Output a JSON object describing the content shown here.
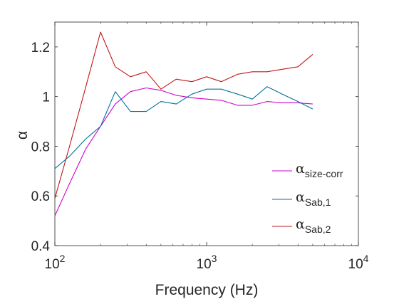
{
  "chart_data": {
    "type": "line",
    "xscale": "log",
    "xlim": [
      100,
      10000
    ],
    "ylim": [
      0.4,
      1.3
    ],
    "xlabel": "Frequency (Hz)",
    "ylabel": "α",
    "xticks": [
      {
        "value": 100,
        "base": "10",
        "exp": "2"
      },
      {
        "value": 1000,
        "base": "10",
        "exp": "3"
      },
      {
        "value": 10000,
        "base": "10",
        "exp": "4"
      }
    ],
    "yticks": [
      {
        "value": 0.4,
        "label": "0.4"
      },
      {
        "value": 0.6,
        "label": "0.6"
      },
      {
        "value": 0.8,
        "label": "0.8"
      },
      {
        "value": 1.0,
        "label": "1"
      },
      {
        "value": 1.2,
        "label": "1.2"
      }
    ],
    "grid": false,
    "legend_position": "bottom-right",
    "x": [
      100,
      125,
      160,
      200,
      250,
      315,
      400,
      500,
      630,
      800,
      1000,
      1250,
      1600,
      2000,
      2500,
      3150,
      4000,
      5000
    ],
    "series": [
      {
        "symbol": "α",
        "subscript": "size-corr",
        "color": "#cc00cc",
        "values": [
          0.52,
          0.65,
          0.79,
          0.88,
          0.97,
          1.02,
          1.035,
          1.025,
          1.005,
          0.995,
          0.99,
          0.985,
          0.965,
          0.965,
          0.98,
          0.975,
          0.975,
          0.97
        ]
      },
      {
        "symbol": "α",
        "subscript": "Sab,1",
        "color": "#00729a",
        "values": [
          0.71,
          0.76,
          0.83,
          0.88,
          1.02,
          0.94,
          0.94,
          0.98,
          0.97,
          1.01,
          1.03,
          1.03,
          1.01,
          0.99,
          1.04,
          1.01,
          0.98,
          0.95
        ]
      },
      {
        "symbol": "α",
        "subscript": "Sab,2",
        "color": "#c0161a",
        "values": [
          0.59,
          0.8,
          1.04,
          1.26,
          1.12,
          1.08,
          1.1,
          1.03,
          1.07,
          1.06,
          1.08,
          1.06,
          1.09,
          1.1,
          1.1,
          1.11,
          1.12,
          1.17
        ]
      }
    ]
  }
}
